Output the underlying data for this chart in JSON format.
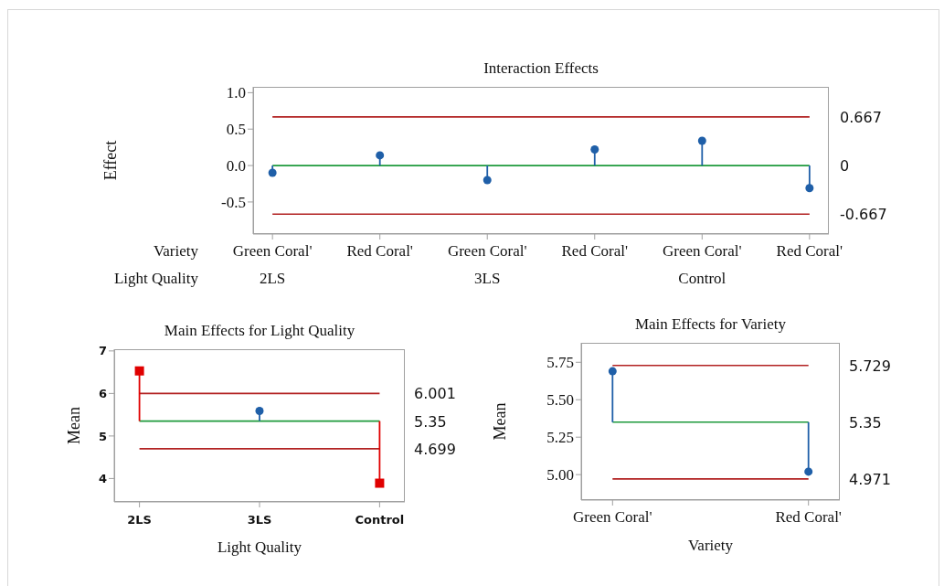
{
  "chart_data": [
    {
      "type": "lollipop",
      "title": "Interaction Effects",
      "ylabel": "Effect",
      "categories": [
        "Green Coral'",
        "Red Coral'",
        "Green Coral'",
        "Red Coral'",
        "Green Coral'",
        "Red Coral'"
      ],
      "annotations": [
        "Variety",
        "Light Quality",
        "2LS",
        "3LS",
        "Control"
      ],
      "series": [
        {
          "color": "#1f5fa8",
          "marker": "circle",
          "values": [
            -0.1,
            0.14,
            -0.2,
            0.22,
            0.34,
            -0.31
          ]
        }
      ],
      "ylim": [
        -0.94,
        1.08
      ],
      "yticks": [
        {
          "value": -0.5,
          "label": "-0.5"
        },
        {
          "value": 0,
          "label": "0.0"
        },
        {
          "value": 0.5,
          "label": "0.5"
        },
        {
          "value": 1,
          "label": "1.0"
        }
      ],
      "ref_lines": [
        {
          "axis": "y",
          "value": 0.667,
          "label": "0.667",
          "color": "#b22222"
        },
        {
          "axis": "y",
          "value": 0,
          "label": "0",
          "color": "#1e9a3c"
        },
        {
          "axis": "y",
          "value": -0.667,
          "label": "-0.667",
          "color": "#b22222"
        }
      ]
    },
    {
      "type": "lollipop",
      "title": "Main Effects for Light Quality",
      "xlabel": "Light Quality",
      "ylabel": "Mean",
      "categories": [
        "2LS",
        "3LS",
        "Control"
      ],
      "series": [
        {
          "color": "#1f5fa8",
          "marker": "circle",
          "values": [
            null,
            5.59,
            null
          ]
        },
        {
          "color": "#e00000",
          "marker": "square",
          "values": [
            6.53,
            null,
            3.89
          ]
        }
      ],
      "ylim": [
        3.45,
        7.04
      ],
      "yticks": [
        4,
        5,
        6,
        7
      ],
      "ref_lines": [
        {
          "axis": "y",
          "value": 6.001,
          "label": "6.001",
          "color": "#b22222"
        },
        {
          "axis": "y",
          "value": 5.35,
          "label": "5.35",
          "color": "#1e9a3c"
        },
        {
          "axis": "y",
          "value": 4.699,
          "label": "4.699",
          "color": "#b22222"
        }
      ]
    },
    {
      "type": "lollipop",
      "title": "Main Effects for Variety",
      "xlabel": "Variety",
      "ylabel": "Mean",
      "categories": [
        "Green Coral'",
        "Red Coral'"
      ],
      "series": [
        {
          "color": "#1f5fa8",
          "marker": "circle",
          "values": [
            5.69,
            5.02
          ]
        }
      ],
      "ylim": [
        4.83,
        5.88
      ],
      "yticks": [
        {
          "value": 5,
          "label": "5.00"
        },
        {
          "value": 5.25,
          "label": "5.25"
        },
        {
          "value": 5.5,
          "label": "5.50"
        },
        {
          "value": 5.75,
          "label": "5.75"
        }
      ],
      "ref_lines": [
        {
          "axis": "y",
          "value": 5.729,
          "label": "5.729",
          "color": "#b22222"
        },
        {
          "axis": "y",
          "value": 5.35,
          "label": "5.35",
          "color": "#1e9a3c"
        },
        {
          "axis": "y",
          "value": 4.971,
          "label": "4.971",
          "color": "#b22222"
        }
      ]
    }
  ]
}
